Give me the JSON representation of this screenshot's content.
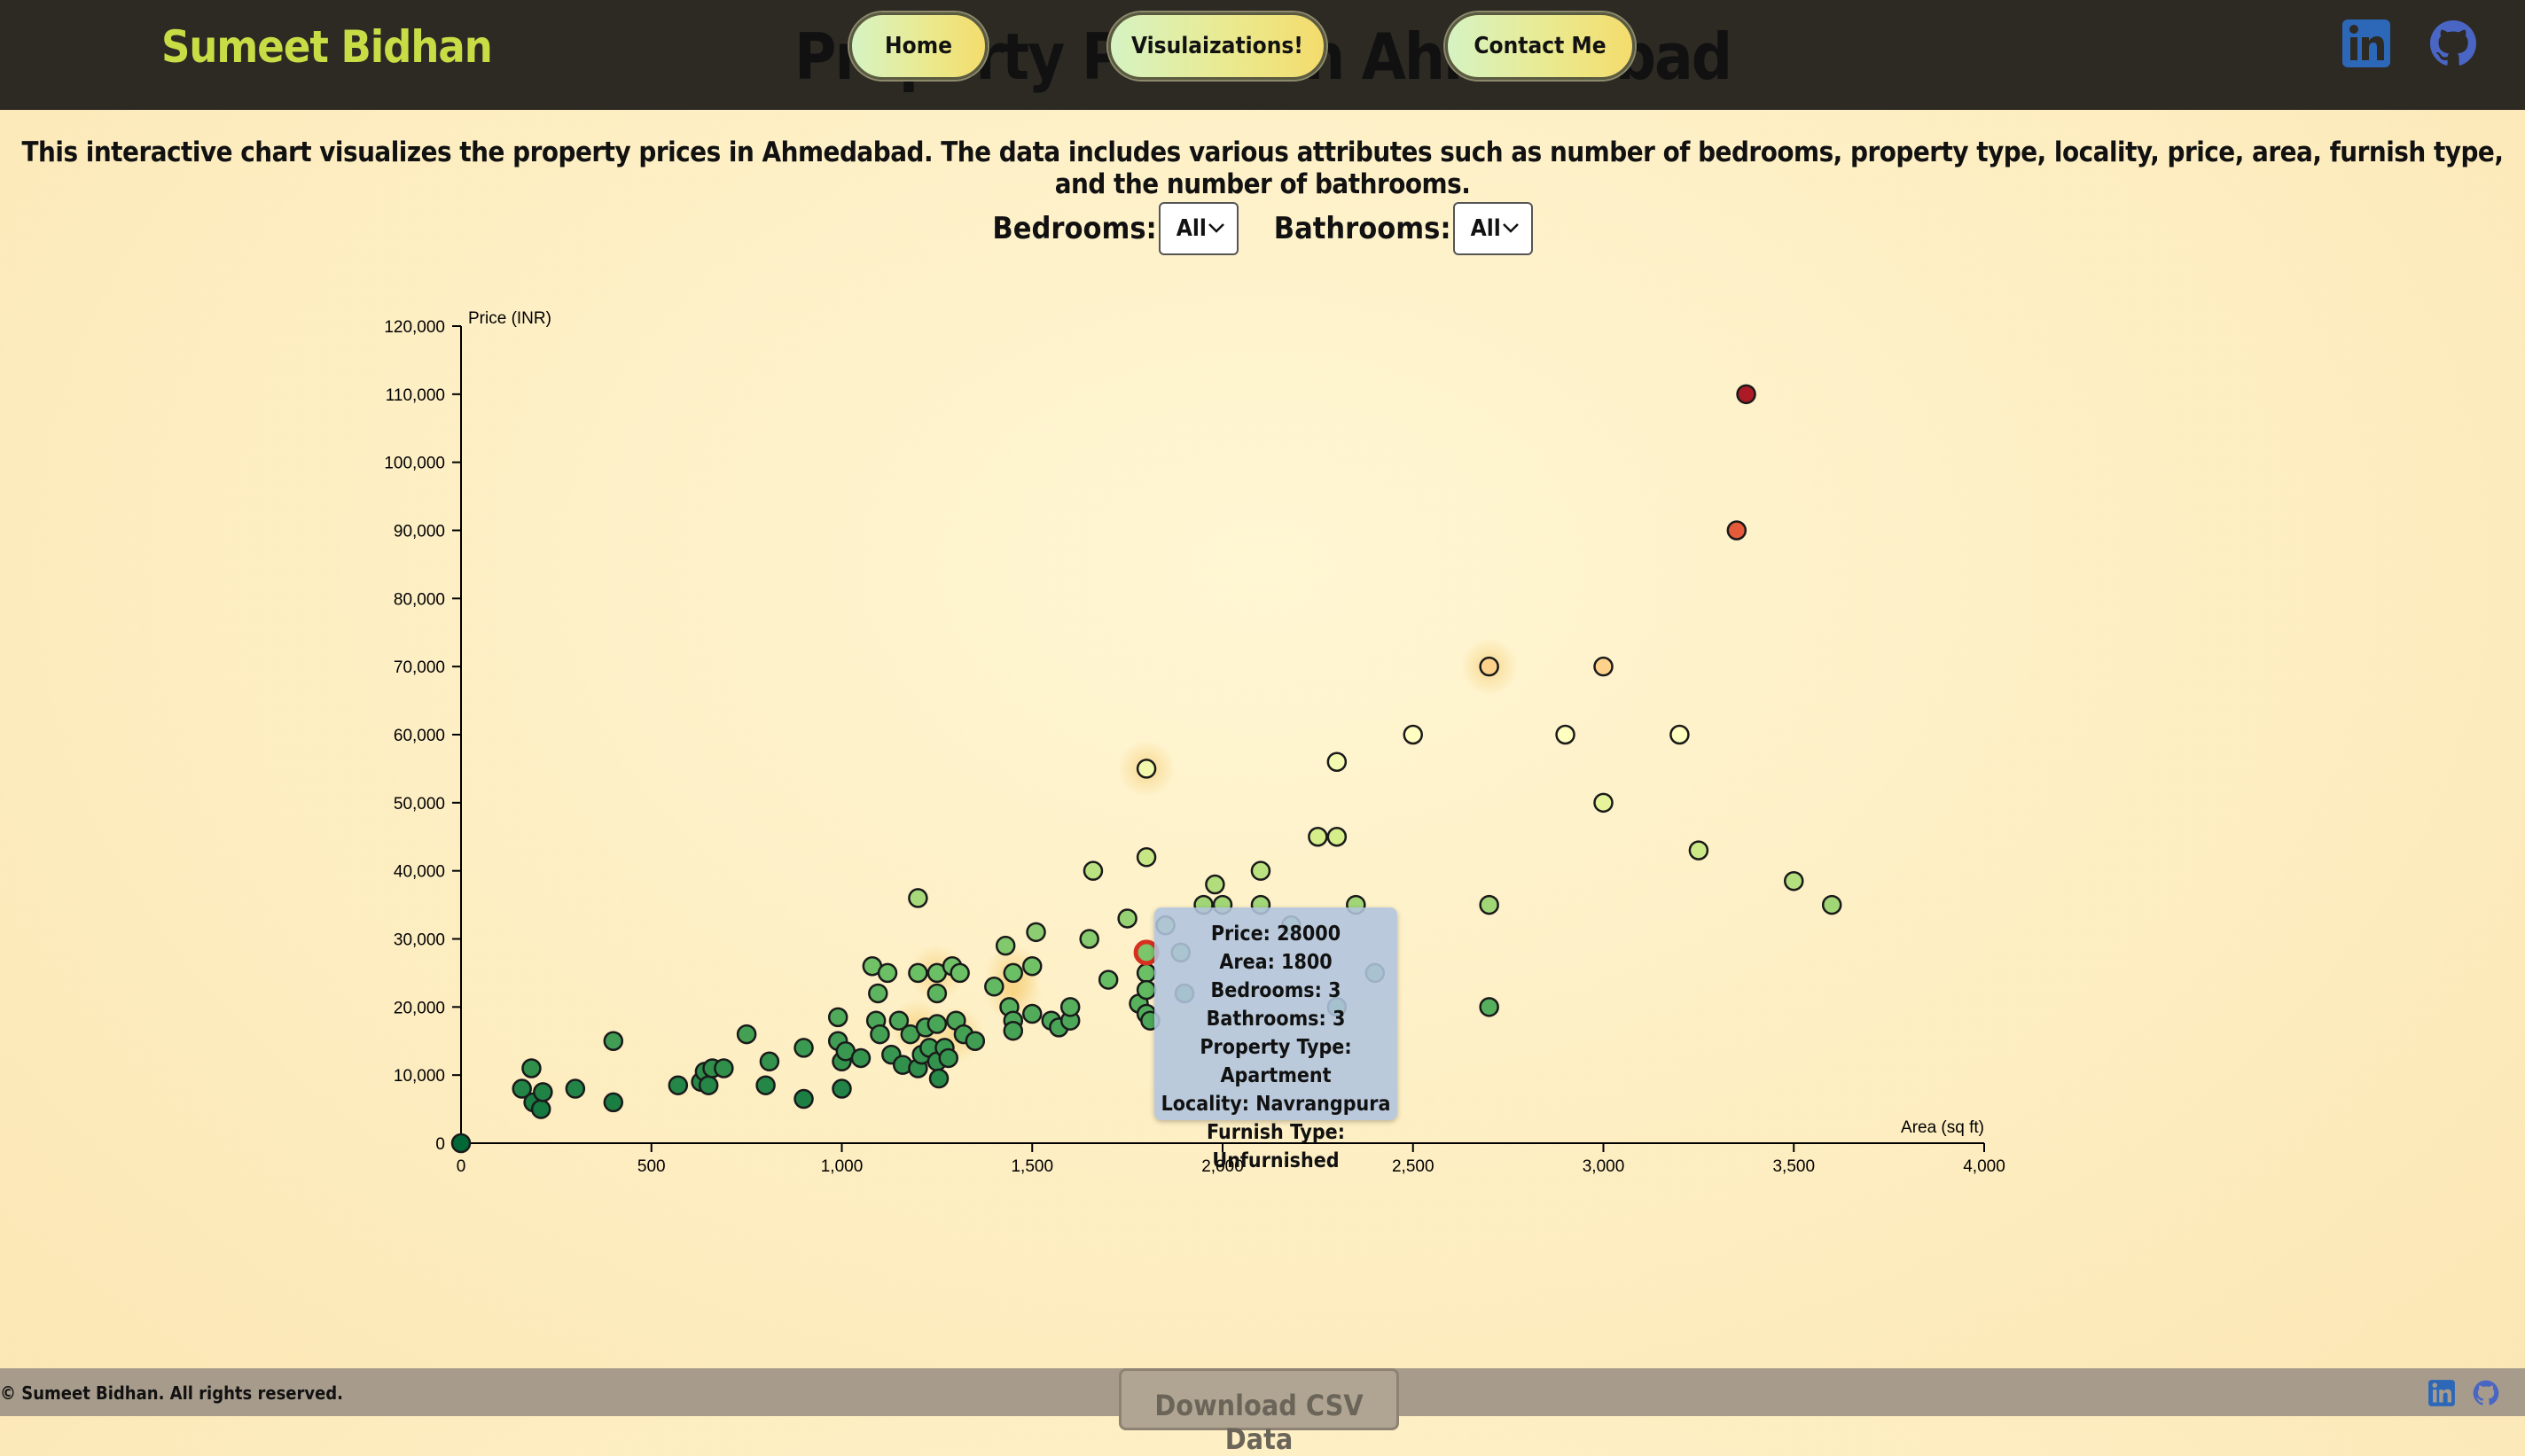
{
  "header": {
    "brand": "Sumeet Bidhan",
    "page_heading": "Property Prices in Ahmedabad",
    "nav": [
      "Home",
      "Visulaizations!",
      "Contact Me"
    ],
    "social_icons": [
      "linkedin-icon",
      "github-icon"
    ]
  },
  "description": "This interactive chart visualizes the property prices in Ahmedabad. The data includes various attributes such as number of bedrooms, property type, locality, price, area, furnish type, and the number of bathrooms.",
  "filters": {
    "bedrooms_label": "Bedrooms:",
    "bedrooms_value": "All",
    "bathrooms_label": "Bathrooms:",
    "bathrooms_value": "All"
  },
  "tooltip": {
    "lines": [
      "Price: 28000",
      "Area: 1800",
      "Bedrooms: 3",
      "Bathrooms: 3",
      "Property Type: Apartment",
      "Locality: Navrangpura",
      "Furnish Type: Unfurnished"
    ]
  },
  "footer": {
    "copyright": "© Sumeet Bidhan. All rights reserved.",
    "download": "Download CSV Data"
  },
  "colors": {
    "navbar": "#2d2a24",
    "brand": "#c8dc45",
    "low_price": "#2e7d4f",
    "mid_price": "#ffffc0",
    "high_price": "#a50026",
    "tooltip_bg": "#b0c4de"
  },
  "chart_data": {
    "type": "scatter",
    "xlabel": "Area (sq ft)",
    "ylabel": "Price (INR)",
    "xlim": [
      0,
      4000
    ],
    "ylim": [
      0,
      120000
    ],
    "xticks": [
      "0",
      "500",
      "1,000",
      "1,500",
      "2,000",
      "2,500",
      "3,000",
      "3,500",
      "4,000"
    ],
    "yticks": [
      "0",
      "10,000",
      "20,000",
      "30,000",
      "40,000",
      "50,000",
      "60,000",
      "70,000",
      "80,000",
      "90,000",
      "100,000",
      "110,000",
      "120,000"
    ],
    "color_scale": "price (green low → pale yellow → red high)",
    "highlighted": {
      "x": 1800,
      "y": 28000
    },
    "points": [
      {
        "x": 0,
        "y": 0
      },
      {
        "x": 160,
        "y": 8000
      },
      {
        "x": 185,
        "y": 11000
      },
      {
        "x": 190,
        "y": 6000
      },
      {
        "x": 210,
        "y": 5000
      },
      {
        "x": 215,
        "y": 7500
      },
      {
        "x": 300,
        "y": 8000
      },
      {
        "x": 400,
        "y": 6000
      },
      {
        "x": 400,
        "y": 15000
      },
      {
        "x": 570,
        "y": 8500
      },
      {
        "x": 630,
        "y": 9000
      },
      {
        "x": 640,
        "y": 10500
      },
      {
        "x": 650,
        "y": 8500
      },
      {
        "x": 660,
        "y": 11000
      },
      {
        "x": 690,
        "y": 11000
      },
      {
        "x": 750,
        "y": 16000
      },
      {
        "x": 800,
        "y": 8500
      },
      {
        "x": 810,
        "y": 12000
      },
      {
        "x": 900,
        "y": 6500
      },
      {
        "x": 900,
        "y": 14000
      },
      {
        "x": 990,
        "y": 18500
      },
      {
        "x": 990,
        "y": 15000
      },
      {
        "x": 1000,
        "y": 8000
      },
      {
        "x": 1000,
        "y": 12000
      },
      {
        "x": 1010,
        "y": 13500
      },
      {
        "x": 1050,
        "y": 12500
      },
      {
        "x": 1080,
        "y": 26000
      },
      {
        "x": 1090,
        "y": 18000
      },
      {
        "x": 1095,
        "y": 22000
      },
      {
        "x": 1100,
        "y": 16000
      },
      {
        "x": 1120,
        "y": 25000
      },
      {
        "x": 1130,
        "y": 13000
      },
      {
        "x": 1150,
        "y": 18000
      },
      {
        "x": 1160,
        "y": 11500
      },
      {
        "x": 1180,
        "y": 16000
      },
      {
        "x": 1200,
        "y": 36000
      },
      {
        "x": 1200,
        "y": 25000
      },
      {
        "x": 1200,
        "y": 11000
      },
      {
        "x": 1210,
        "y": 13000
      },
      {
        "x": 1220,
        "y": 17000
      },
      {
        "x": 1230,
        "y": 14000
      },
      {
        "x": 1250,
        "y": 25000
      },
      {
        "x": 1250,
        "y": 22000
      },
      {
        "x": 1250,
        "y": 17500
      },
      {
        "x": 1250,
        "y": 12000
      },
      {
        "x": 1255,
        "y": 9500
      },
      {
        "x": 1270,
        "y": 14000
      },
      {
        "x": 1280,
        "y": 12500
      },
      {
        "x": 1290,
        "y": 26000
      },
      {
        "x": 1300,
        "y": 18000
      },
      {
        "x": 1310,
        "y": 25000
      },
      {
        "x": 1320,
        "y": 16000
      },
      {
        "x": 1350,
        "y": 15000
      },
      {
        "x": 1400,
        "y": 23000
      },
      {
        "x": 1430,
        "y": 29000
      },
      {
        "x": 1440,
        "y": 20000
      },
      {
        "x": 1450,
        "y": 25000
      },
      {
        "x": 1450,
        "y": 18000
      },
      {
        "x": 1450,
        "y": 16500
      },
      {
        "x": 1500,
        "y": 19000
      },
      {
        "x": 1500,
        "y": 26000
      },
      {
        "x": 1510,
        "y": 31000
      },
      {
        "x": 1550,
        "y": 18000
      },
      {
        "x": 1570,
        "y": 17000
      },
      {
        "x": 1600,
        "y": 18000
      },
      {
        "x": 1600,
        "y": 20000
      },
      {
        "x": 1650,
        "y": 30000
      },
      {
        "x": 1660,
        "y": 40000
      },
      {
        "x": 1700,
        "y": 24000
      },
      {
        "x": 1750,
        "y": 33000
      },
      {
        "x": 1780,
        "y": 20500
      },
      {
        "x": 1800,
        "y": 55000
      },
      {
        "x": 1800,
        "y": 42000
      },
      {
        "x": 1800,
        "y": 25000
      },
      {
        "x": 1800,
        "y": 22500
      },
      {
        "x": 1800,
        "y": 19000
      },
      {
        "x": 1810,
        "y": 18000
      },
      {
        "x": 1850,
        "y": 32000
      },
      {
        "x": 1890,
        "y": 28000
      },
      {
        "x": 1900,
        "y": 22000
      },
      {
        "x": 1950,
        "y": 35000
      },
      {
        "x": 1980,
        "y": 38000
      },
      {
        "x": 2000,
        "y": 35000
      },
      {
        "x": 2100,
        "y": 40000
      },
      {
        "x": 2100,
        "y": 35000
      },
      {
        "x": 2180,
        "y": 32000
      },
      {
        "x": 2250,
        "y": 45000
      },
      {
        "x": 2300,
        "y": 56000
      },
      {
        "x": 2300,
        "y": 45000
      },
      {
        "x": 2300,
        "y": 20000
      },
      {
        "x": 2350,
        "y": 35000
      },
      {
        "x": 2400,
        "y": 25000
      },
      {
        "x": 2500,
        "y": 60000
      },
      {
        "x": 2700,
        "y": 70000
      },
      {
        "x": 2700,
        "y": 35000
      },
      {
        "x": 2700,
        "y": 20000
      },
      {
        "x": 2900,
        "y": 60000
      },
      {
        "x": 3000,
        "y": 70000
      },
      {
        "x": 3000,
        "y": 50000
      },
      {
        "x": 3200,
        "y": 60000
      },
      {
        "x": 3250,
        "y": 43000
      },
      {
        "x": 3350,
        "y": 90000
      },
      {
        "x": 3375,
        "y": 110000
      },
      {
        "x": 3500,
        "y": 38500
      },
      {
        "x": 3600,
        "y": 35000
      }
    ]
  }
}
